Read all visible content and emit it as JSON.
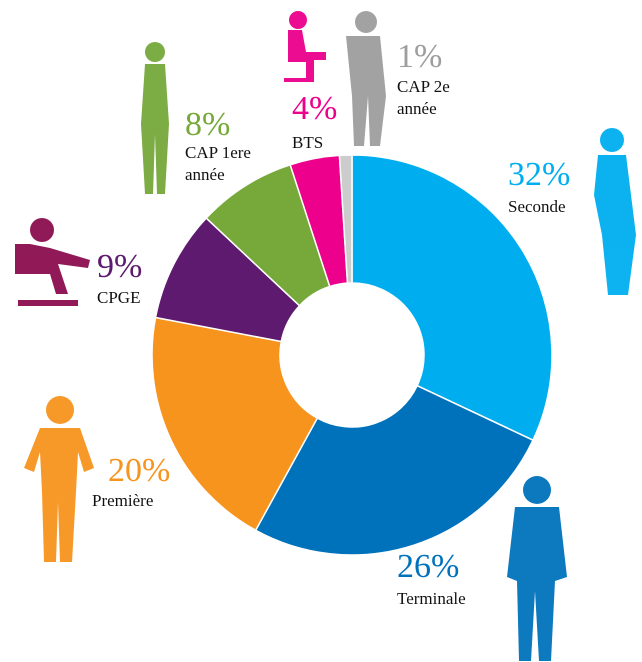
{
  "chart_data": {
    "type": "donut",
    "categories": [
      "Seconde",
      "Terminale",
      "Première",
      "CPGE",
      "CAP 1ere année",
      "BTS",
      "CAP 2e année"
    ],
    "values": [
      32,
      26,
      20,
      9,
      8,
      4,
      1
    ],
    "value_labels": [
      "32%",
      "26%",
      "20%",
      "9%",
      "8%",
      "4%",
      "1%"
    ],
    "colors": [
      "#00aeef",
      "#0072bc",
      "#f7941d",
      "#5e1a6e",
      "#76a83a",
      "#ec008c",
      "#cccccc"
    ]
  }
}
